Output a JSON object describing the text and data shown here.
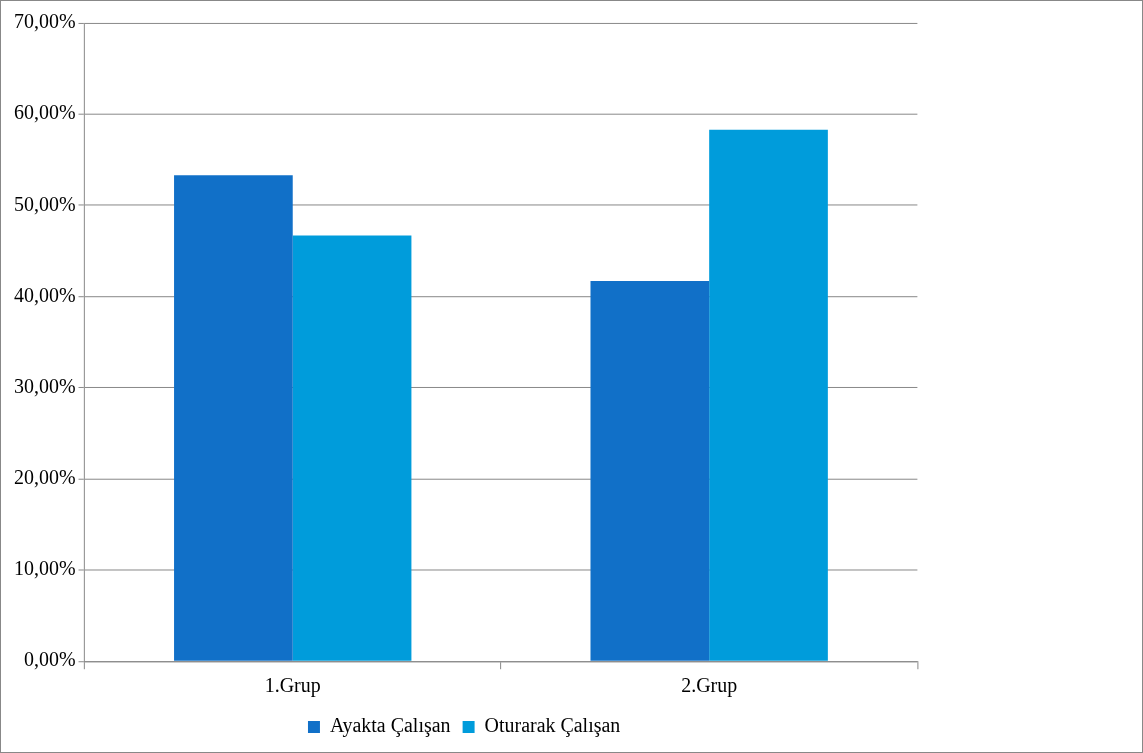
{
  "chart_data": {
    "type": "bar",
    "categories": [
      "1.Grup",
      "2.Grup"
    ],
    "series": [
      {
        "name": "Ayakta Çalışan",
        "color": "#1170c8",
        "values": [
          53.3,
          41.7
        ]
      },
      {
        "name": "Oturarak Çalışan",
        "color": "#009cdb",
        "values": [
          46.7,
          58.3
        ]
      }
    ],
    "ylim": [
      0,
      70
    ],
    "yticks": [
      {
        "value": 0,
        "label": "0,00%"
      },
      {
        "value": 10,
        "label": "10,00%"
      },
      {
        "value": 20,
        "label": "20,00%"
      },
      {
        "value": 30,
        "label": "30,00%"
      },
      {
        "value": 40,
        "label": "40,00%"
      },
      {
        "value": 50,
        "label": "50,00%"
      },
      {
        "value": 60,
        "label": "60,00%"
      },
      {
        "value": 70,
        "label": "70,00%"
      }
    ],
    "grid": "y",
    "legend": "bottom"
  }
}
